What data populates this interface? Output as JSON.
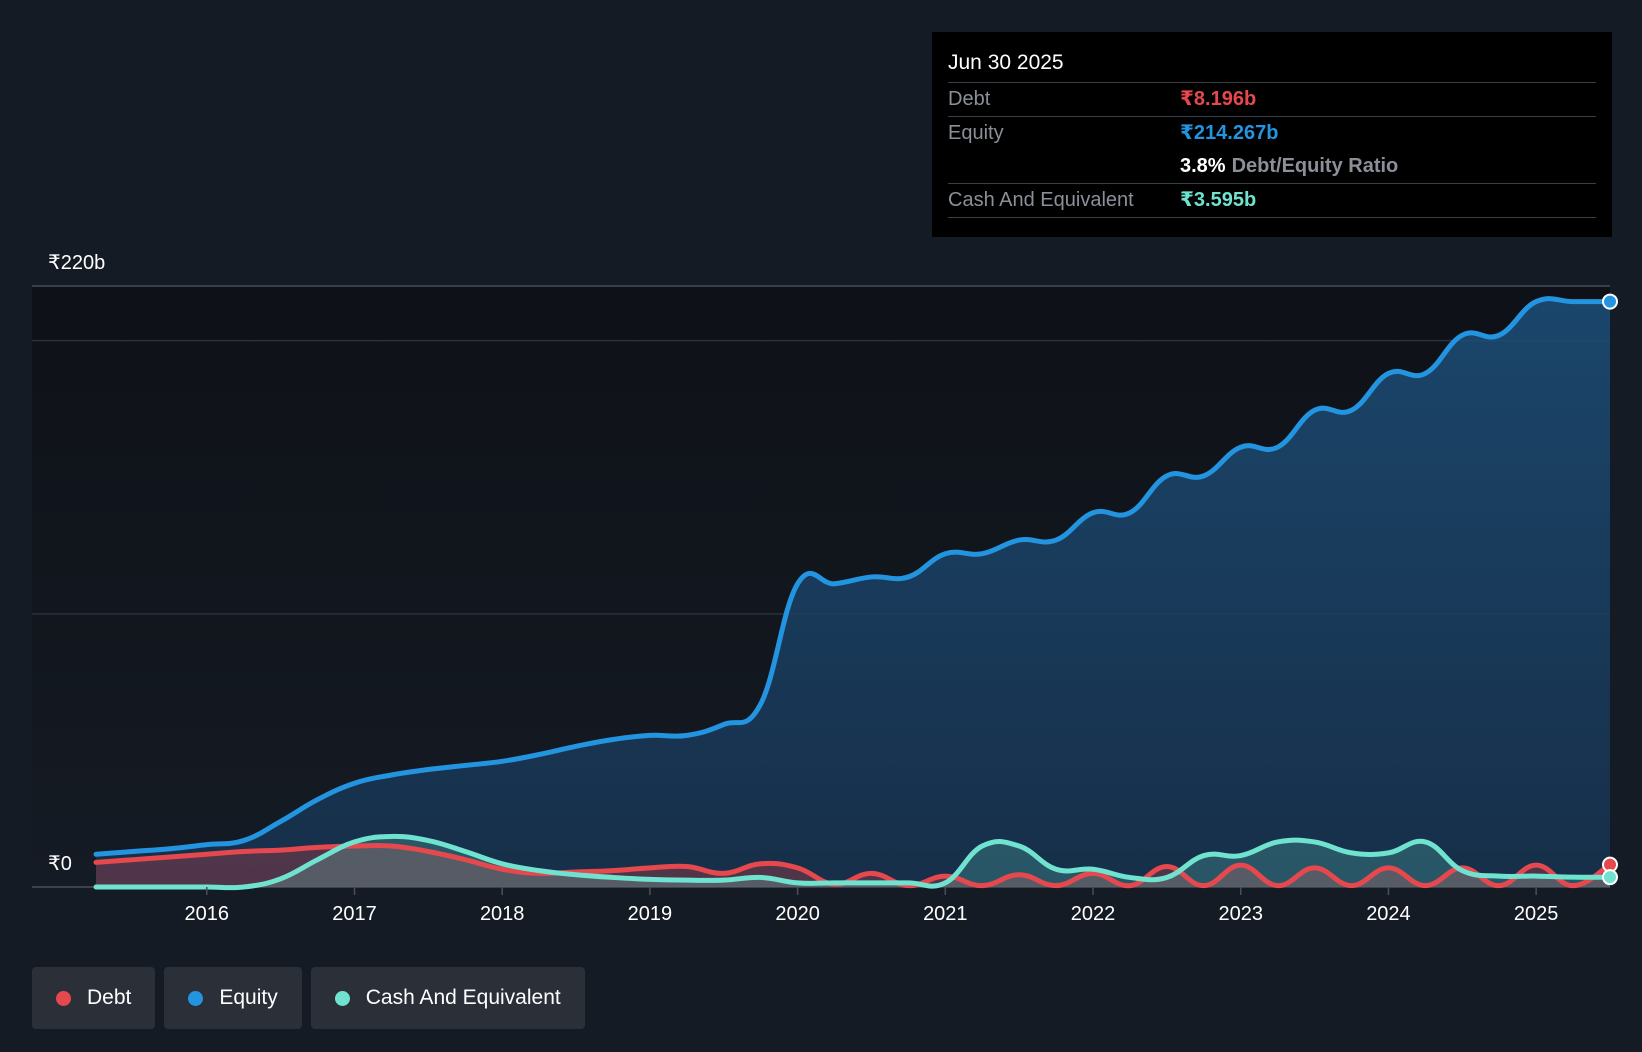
{
  "tooltip": {
    "date": "Jun 30 2025",
    "debt_label": "Debt",
    "debt_value": "₹8.196b",
    "equity_label": "Equity",
    "equity_value": "₹214.267b",
    "ratio_value": "3.8%",
    "ratio_label": "Debt/Equity Ratio",
    "cash_label": "Cash And Equivalent",
    "cash_value": "₹3.595b"
  },
  "legend": {
    "debt": "Debt",
    "equity": "Equity",
    "cash": "Cash And Equivalent"
  },
  "colors": {
    "debt": "#e5484d",
    "equity": "#2394df",
    "cash": "#6fe3cf",
    "background": "#151b24"
  },
  "chart_data": {
    "type": "area",
    "title": "",
    "xlabel": "",
    "ylabel": "",
    "y_top_label": "₹220b",
    "y_bottom_label": "₹0",
    "ylim": [
      0,
      220
    ],
    "xlim": [
      2015.25,
      2025.5
    ],
    "x_ticks": [
      2016,
      2017,
      2018,
      2019,
      2020,
      2021,
      2022,
      2023,
      2024,
      2025
    ],
    "series": [
      {
        "name": "Equity",
        "x": [
          2015.25,
          2015.5,
          2015.75,
          2016.0,
          2016.25,
          2016.5,
          2016.75,
          2017.0,
          2017.25,
          2017.5,
          2017.75,
          2018.0,
          2018.25,
          2018.5,
          2018.75,
          2019.0,
          2019.25,
          2019.5,
          2019.75,
          2020.0,
          2020.25,
          2020.5,
          2020.75,
          2021.0,
          2021.25,
          2021.5,
          2021.75,
          2022.0,
          2022.25,
          2022.5,
          2022.75,
          2023.0,
          2023.25,
          2023.5,
          2023.75,
          2024.0,
          2024.25,
          2024.5,
          2024.75,
          2025.0,
          2025.25,
          2025.5
        ],
        "values": [
          12,
          13,
          14,
          15.5,
          17,
          24,
          32,
          38,
          41,
          43,
          44.5,
          46,
          48.5,
          51.5,
          54,
          55.5,
          55.5,
          59.5,
          67,
          111,
          111,
          113.5,
          113.5,
          122,
          122,
          127,
          127,
          137,
          137,
          150.5,
          150.5,
          161,
          161,
          174.5,
          174.5,
          188,
          188,
          202,
          202,
          214.3,
          214.3,
          214.3
        ]
      },
      {
        "name": "Debt",
        "x": [
          2015.25,
          2015.5,
          2015.75,
          2016.0,
          2016.25,
          2016.5,
          2016.75,
          2017.0,
          2017.25,
          2017.5,
          2017.75,
          2018.0,
          2018.25,
          2018.5,
          2018.75,
          2019.0,
          2019.25,
          2019.5,
          2019.75,
          2020.0,
          2020.25,
          2020.5,
          2020.75,
          2021.0,
          2021.25,
          2021.5,
          2021.75,
          2022.0,
          2022.25,
          2022.5,
          2022.75,
          2023.0,
          2023.25,
          2023.5,
          2023.75,
          2024.0,
          2024.25,
          2024.5,
          2024.75,
          2025.0,
          2025.25,
          2025.5
        ],
        "values": [
          9,
          10,
          11,
          12,
          13,
          13.5,
          14.5,
          15,
          15,
          13,
          10,
          6.5,
          5,
          5.5,
          6,
          7,
          7.5,
          5,
          8.5,
          7,
          1,
          5,
          0.5,
          4,
          0.5,
          4.5,
          0.5,
          5,
          0.5,
          7.5,
          0.5,
          8,
          0.5,
          7,
          0.5,
          7,
          0.5,
          7,
          0.5,
          8,
          0.5,
          8.2
        ]
      },
      {
        "name": "Cash And Equivalent",
        "x": [
          2015.25,
          2015.5,
          2015.75,
          2016.0,
          2016.25,
          2016.5,
          2016.75,
          2017.0,
          2017.25,
          2017.5,
          2017.75,
          2018.0,
          2018.25,
          2018.5,
          2018.75,
          2019.0,
          2019.25,
          2019.5,
          2019.75,
          2020.0,
          2020.25,
          2020.5,
          2020.75,
          2021.0,
          2021.25,
          2021.5,
          2021.75,
          2022.0,
          2022.25,
          2022.5,
          2022.75,
          2023.0,
          2023.25,
          2023.5,
          2023.75,
          2024.0,
          2024.25,
          2024.5,
          2024.75,
          2025.0,
          2025.25,
          2025.5
        ],
        "values": [
          0,
          0,
          0,
          0,
          0,
          3,
          10,
          16.5,
          18.5,
          17,
          13,
          8.5,
          6,
          4.5,
          3.5,
          2.8,
          2.5,
          2.5,
          3.5,
          1.5,
          1.5,
          1.5,
          1.5,
          1.5,
          15,
          15,
          6.5,
          6.5,
          3.5,
          3.5,
          11.5,
          11.5,
          16.5,
          16.5,
          12.5,
          12.5,
          16.5,
          6,
          4,
          4,
          3.6,
          3.6
        ]
      }
    ],
    "tooltip_date": "Jun 30 2025"
  }
}
